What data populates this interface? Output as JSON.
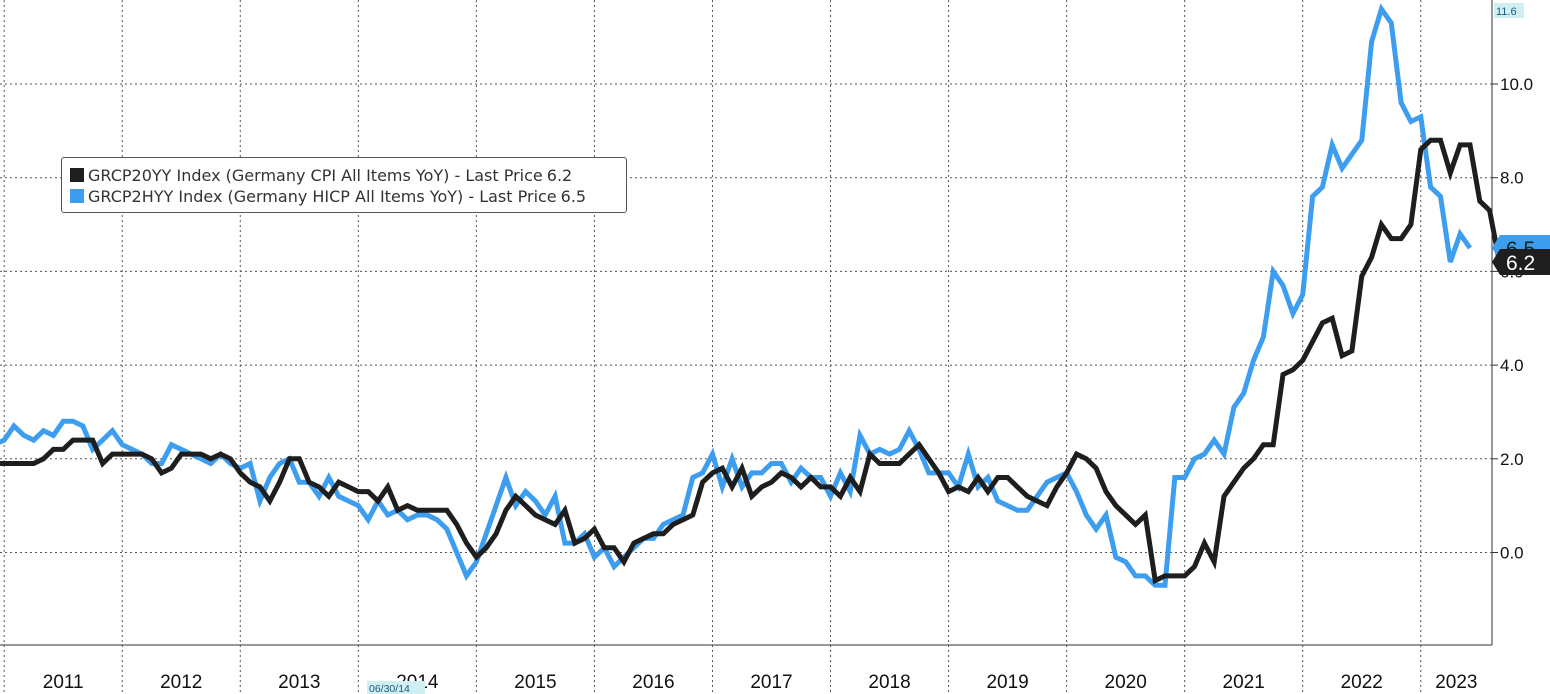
{
  "chart_data": {
    "type": "line",
    "title": "",
    "xlabel": "",
    "ylabel": "",
    "x_range": [
      "2010-11",
      "2023-05"
    ],
    "ylim": [
      -1.8,
      11.8
    ],
    "yticks": [
      "0.0",
      "2.0",
      "4.0",
      "6.0",
      "8.0",
      "10.0"
    ],
    "xtick_labels": [
      "2011",
      "2012",
      "2013",
      "2014",
      "2015",
      "2016",
      "2017",
      "2018",
      "2019",
      "2020",
      "2021",
      "2022",
      "2023"
    ],
    "grid": true,
    "legend_position": "upper-left",
    "axis_marker": {
      "label": "06/30/14"
    },
    "top_marker": {
      "label": "11.6"
    },
    "series": [
      {
        "name": "GRCP20YY Index (Germany CPI All Items YoY) - Last Price",
        "last_price": "6.2",
        "color": "#1e1e1e",
        "start": "2010-11",
        "values": [
          1.5,
          1.9,
          1.9,
          1.9,
          1.9,
          1.9,
          2.0,
          2.2,
          2.2,
          2.4,
          2.4,
          2.4,
          1.9,
          2.1,
          2.1,
          2.1,
          2.1,
          2.0,
          1.7,
          1.8,
          2.1,
          2.1,
          2.1,
          2.0,
          2.1,
          2.0,
          1.7,
          1.5,
          1.4,
          1.1,
          1.5,
          2.0,
          2.0,
          1.5,
          1.4,
          1.2,
          1.5,
          1.4,
          1.3,
          1.3,
          1.1,
          1.4,
          0.9,
          1.0,
          0.9,
          0.9,
          0.9,
          0.9,
          0.6,
          0.2,
          -0.1,
          0.1,
          0.4,
          0.9,
          1.2,
          1.0,
          0.8,
          0.7,
          0.6,
          0.9,
          0.2,
          0.3,
          0.5,
          0.1,
          0.1,
          -0.2,
          0.2,
          0.3,
          0.4,
          0.4,
          0.6,
          0.7,
          0.8,
          1.5,
          1.7,
          1.8,
          1.4,
          1.8,
          1.2,
          1.4,
          1.5,
          1.7,
          1.6,
          1.4,
          1.6,
          1.4,
          1.4,
          1.2,
          1.6,
          1.3,
          2.1,
          1.9,
          1.9,
          1.9,
          2.1,
          2.3,
          2.0,
          1.7,
          1.3,
          1.4,
          1.3,
          1.6,
          1.3,
          1.6,
          1.6,
          1.4,
          1.2,
          1.1,
          1.0,
          1.4,
          1.7,
          2.1,
          2.0,
          1.8,
          1.3,
          1.0,
          0.8,
          0.6,
          0.8,
          -0.6,
          -0.5,
          -0.5,
          -0.5,
          -0.3,
          0.2,
          -0.2,
          1.2,
          1.5,
          1.8,
          2.0,
          2.3,
          2.3,
          3.8,
          3.9,
          4.1,
          4.5,
          4.9,
          5.0,
          4.2,
          4.3,
          5.9,
          6.3,
          7.0,
          6.7,
          6.7,
          7.0,
          8.6,
          8.8,
          8.8,
          8.1,
          8.7,
          8.7,
          7.5,
          7.3,
          6.2,
          6.5,
          6.2
        ]
      },
      {
        "name": "GRCP2HYY Index (Germany HICP All Items YoY) - Last Price",
        "last_price": "6.5",
        "color": "#3d9ef0",
        "start": "2010-11",
        "values": [
          2.1,
          2.3,
          2.4,
          2.7,
          2.5,
          2.4,
          2.6,
          2.5,
          2.8,
          2.8,
          2.7,
          2.2,
          2.4,
          2.6,
          2.3,
          2.2,
          2.1,
          1.9,
          1.9,
          2.3,
          2.2,
          2.1,
          2.0,
          1.9,
          2.1,
          1.9,
          1.8,
          1.9,
          1.1,
          1.6,
          1.9,
          2.0,
          1.5,
          1.5,
          1.2,
          1.6,
          1.2,
          1.1,
          1.0,
          0.7,
          1.1,
          0.8,
          0.9,
          0.7,
          0.8,
          0.8,
          0.7,
          0.5,
          0.0,
          -0.5,
          -0.2,
          0.4,
          1.0,
          1.6,
          1.0,
          1.3,
          1.1,
          0.8,
          1.2,
          0.2,
          0.2,
          0.4,
          -0.1,
          0.1,
          -0.3,
          -0.1,
          0.1,
          0.3,
          0.3,
          0.6,
          0.7,
          0.8,
          1.6,
          1.7,
          2.1,
          1.4,
          2.0,
          1.4,
          1.7,
          1.7,
          1.9,
          1.9,
          1.5,
          1.8,
          1.6,
          1.6,
          1.2,
          1.7,
          1.3,
          2.5,
          2.1,
          2.2,
          2.1,
          2.2,
          2.6,
          2.2,
          1.7,
          1.7,
          1.7,
          1.4,
          2.1,
          1.4,
          1.6,
          1.1,
          1.0,
          0.9,
          0.9,
          1.2,
          1.5,
          1.6,
          1.7,
          1.3,
          0.8,
          0.5,
          0.8,
          -0.1,
          -0.2,
          -0.5,
          -0.5,
          -0.7,
          -0.7,
          1.6,
          1.6,
          2.0,
          2.1,
          2.4,
          2.1,
          3.1,
          3.4,
          4.1,
          4.6,
          6.0,
          5.7,
          5.1,
          5.5,
          7.6,
          7.8,
          8.7,
          8.2,
          8.5,
          8.8,
          10.9,
          11.6,
          11.3,
          9.6,
          9.2,
          9.3,
          7.8,
          7.6,
          6.2,
          6.8,
          6.5
        ]
      }
    ]
  }
}
